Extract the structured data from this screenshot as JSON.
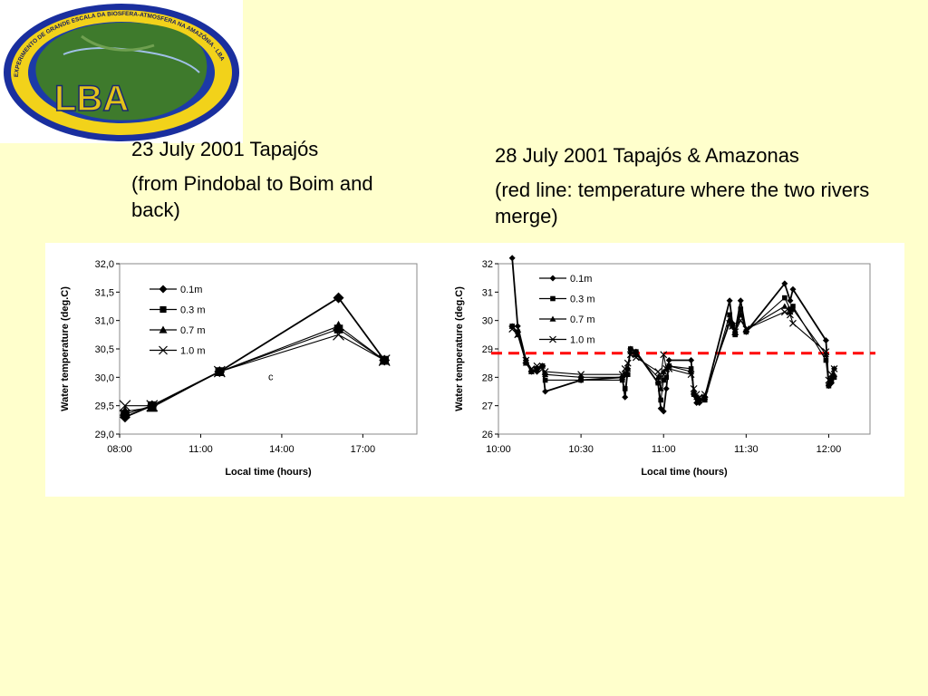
{
  "logo": {
    "text": "LBA",
    "ring_text": "EXPERIMENTO DE GRANDE ESCALA DA BIOSFERA-ATMOSFERA NA AMAZÔNIA - LBA"
  },
  "left_caption": {
    "line1": "23 July 2001 Tapajós",
    "line2": "(from Pindobal to Boim and back)"
  },
  "right_caption": {
    "line1": "28 July 2001 Tapajós & Amazonas",
    "line2": "(red line: temperature where the two rivers merge)"
  },
  "colors": {
    "background": "#ffffcc",
    "series": "#000000",
    "red_line": "#ff0000"
  },
  "chart_data": [
    {
      "type": "line",
      "xlabel": "Local time (hours)",
      "ylabel": "Water temperature (deg.C)",
      "xlim": [
        8,
        19
      ],
      "ylim": [
        29.0,
        32.0
      ],
      "xticks": [
        "08:00",
        "11:00",
        "14:00",
        "17:00"
      ],
      "yticks": [
        "29,0",
        "29,5",
        "30,0",
        "30,5",
        "31,0",
        "31,5",
        "32,0"
      ],
      "annotation": "c",
      "legend_position": "top-left",
      "series": [
        {
          "name": "0.1m",
          "marker": "diamond",
          "x": [
            8.2,
            9.2,
            11.7,
            16.1,
            17.8
          ],
          "y": [
            29.3,
            29.5,
            30.1,
            31.4,
            30.3
          ]
        },
        {
          "name": "0.3 m",
          "marker": "square",
          "x": [
            8.2,
            9.2,
            11.7,
            16.1,
            17.8
          ],
          "y": [
            29.35,
            29.5,
            30.1,
            30.85,
            30.3
          ]
        },
        {
          "name": "0.7 m",
          "marker": "triangle",
          "x": [
            8.2,
            9.2,
            11.7,
            16.1,
            17.8
          ],
          "y": [
            29.4,
            29.47,
            30.1,
            30.9,
            30.3
          ]
        },
        {
          "name": "1.0 m",
          "marker": "x",
          "x": [
            8.2,
            9.2,
            11.7,
            16.1,
            17.8
          ],
          "y": [
            29.5,
            29.5,
            30.1,
            30.75,
            30.3
          ]
        }
      ]
    },
    {
      "type": "line",
      "xlabel": "Local time (hours)",
      "ylabel": "Water temperature (deg.C)",
      "xlim": [
        0,
        135
      ],
      "ylim": [
        26,
        32
      ],
      "xticks": [
        "10:00",
        "10:30",
        "11:00",
        "11:30",
        "12:00"
      ],
      "yticks": [
        "26",
        "27",
        "28",
        "29",
        "30",
        "31",
        "32"
      ],
      "reference_line": {
        "y": 28.85,
        "style": "dashed"
      },
      "legend_position": "top-left",
      "series": [
        {
          "name": "0.1m",
          "marker": "diamond",
          "x": [
            5,
            7,
            10,
            12,
            14,
            16,
            17,
            30,
            45,
            46,
            47,
            48,
            50,
            58,
            59,
            60,
            61,
            62,
            70,
            71,
            72,
            73,
            75,
            84,
            85,
            86,
            88,
            90,
            104,
            106,
            107,
            119,
            120,
            121,
            122
          ],
          "y": [
            32.2,
            29.8,
            28.6,
            28.2,
            28.2,
            28.4,
            27.5,
            27.9,
            28.0,
            27.3,
            28.3,
            29.0,
            28.9,
            27.8,
            26.9,
            26.8,
            27.6,
            28.6,
            28.6,
            27.4,
            27.1,
            27.1,
            27.3,
            30.7,
            29.9,
            29.6,
            30.7,
            29.6,
            31.3,
            30.7,
            31.1,
            29.3,
            27.7,
            27.8,
            28.3
          ]
        },
        {
          "name": "0.3 m",
          "marker": "square",
          "x": [
            5,
            7,
            10,
            12,
            14,
            16,
            17,
            30,
            45,
            46,
            47,
            48,
            50,
            58,
            59,
            60,
            61,
            62,
            70,
            71,
            72,
            73,
            75,
            84,
            85,
            86,
            88,
            90,
            104,
            106,
            107,
            119,
            120,
            121,
            122
          ],
          "y": [
            29.8,
            29.6,
            28.5,
            28.2,
            28.3,
            28.4,
            27.9,
            27.9,
            27.9,
            27.6,
            28.1,
            29.0,
            28.9,
            27.8,
            27.2,
            27.9,
            28.0,
            28.4,
            28.3,
            27.4,
            27.3,
            27.2,
            27.2,
            30.2,
            29.8,
            29.5,
            30.4,
            29.6,
            30.8,
            30.4,
            30.5,
            28.6,
            27.7,
            27.9,
            28.0
          ]
        },
        {
          "name": "0.7 m",
          "marker": "triangle",
          "x": [
            5,
            7,
            10,
            12,
            14,
            16,
            17,
            30,
            45,
            46,
            47,
            48,
            50,
            58,
            59,
            60,
            61,
            62,
            70,
            71,
            72,
            73,
            75,
            84,
            85,
            86,
            88,
            90,
            104,
            106,
            107,
            119,
            120,
            121,
            122
          ],
          "y": [
            29.8,
            29.5,
            28.5,
            28.2,
            28.3,
            28.4,
            28.1,
            28.0,
            28.0,
            28.1,
            28.3,
            28.9,
            28.8,
            28.0,
            27.6,
            28.2,
            28.3,
            28.4,
            28.2,
            27.5,
            27.3,
            27.2,
            27.3,
            30.0,
            29.9,
            29.6,
            30.2,
            29.7,
            30.5,
            30.3,
            30.4,
            28.8,
            27.8,
            28.0,
            28.1
          ]
        },
        {
          "name": "1.0 m",
          "marker": "x",
          "x": [
            5,
            7,
            10,
            12,
            14,
            16,
            17,
            30,
            45,
            46,
            47,
            48,
            50,
            58,
            59,
            60,
            61,
            62,
            70,
            71,
            72,
            73,
            75,
            84,
            85,
            86,
            88,
            90,
            104,
            106,
            107,
            119,
            120,
            121,
            122
          ],
          "y": [
            29.7,
            29.5,
            28.6,
            28.3,
            28.4,
            28.3,
            28.2,
            28.1,
            28.1,
            28.3,
            28.5,
            28.8,
            28.7,
            28.2,
            28.0,
            28.8,
            28.3,
            28.3,
            28.1,
            27.6,
            27.4,
            27.3,
            27.4,
            29.9,
            29.8,
            29.6,
            30.0,
            29.7,
            30.3,
            30.2,
            29.9,
            28.9,
            27.9,
            28.1,
            28.3
          ]
        }
      ]
    }
  ]
}
